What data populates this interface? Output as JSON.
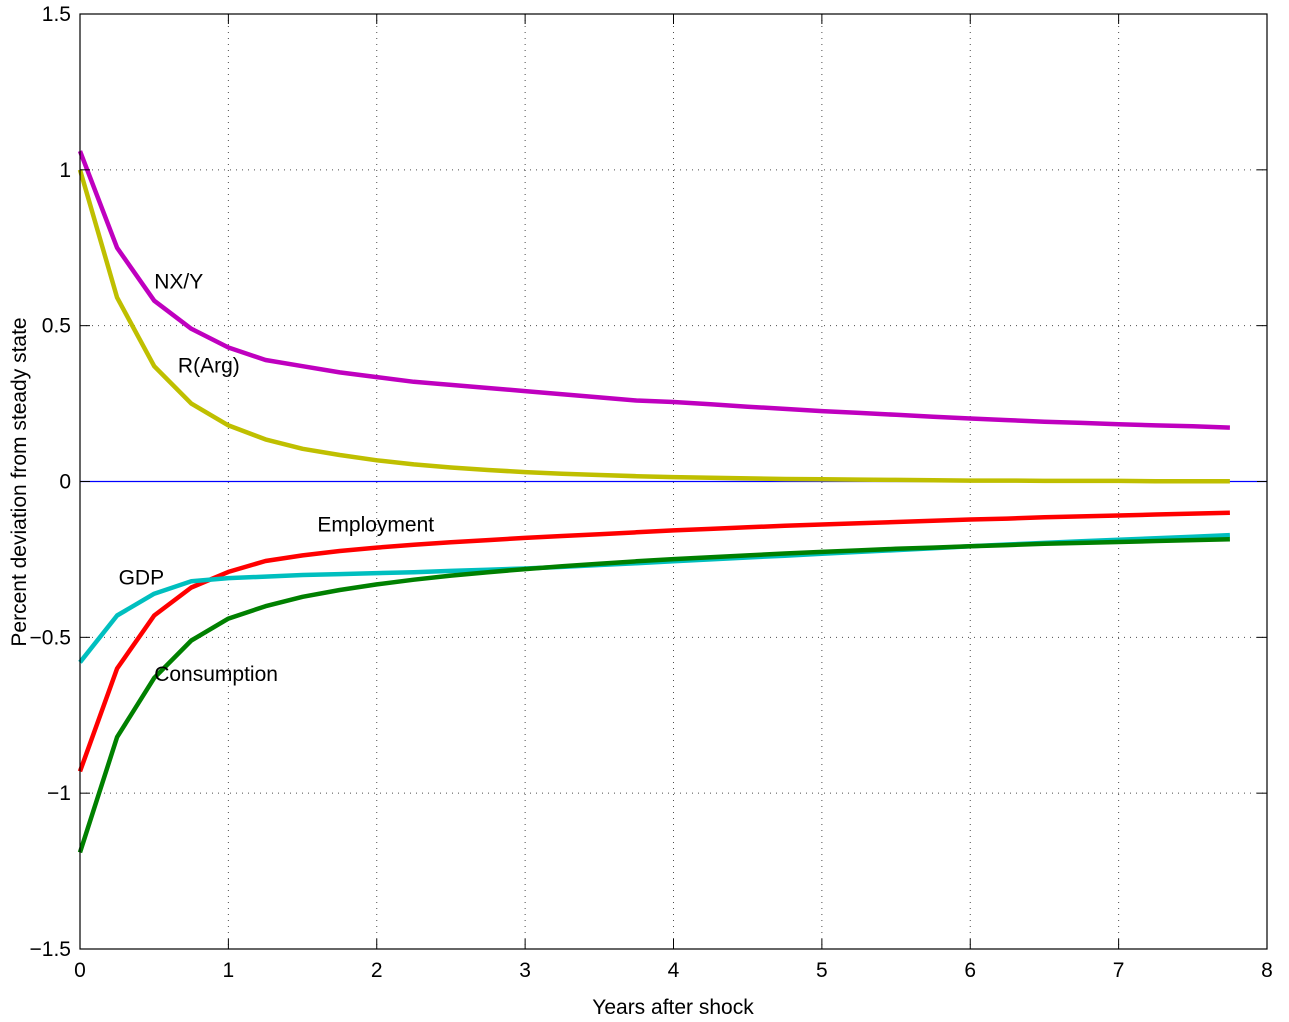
{
  "chart_data": {
    "type": "line",
    "title": "",
    "xlabel": "Years after shock",
    "ylabel": "Percent deviation from steady state",
    "xlim": [
      0,
      8
    ],
    "ylim": [
      -1.5,
      1.5
    ],
    "xticks": [
      0,
      1,
      2,
      3,
      4,
      5,
      6,
      7,
      8
    ],
    "xtick_labels": [
      "0",
      "1",
      "2",
      "3",
      "4",
      "5",
      "6",
      "7",
      "8"
    ],
    "yticks": [
      -1.5,
      -1,
      -0.5,
      0,
      0.5,
      1,
      1.5
    ],
    "ytick_labels": [
      "−1.5",
      "−1",
      "−0.5",
      "0",
      "0.5",
      "1",
      "1.5"
    ],
    "grid": true,
    "legend": "none",
    "x": [
      0,
      0.25,
      0.5,
      0.75,
      1,
      1.25,
      1.5,
      1.75,
      2,
      2.25,
      2.5,
      2.75,
      3,
      3.25,
      3.5,
      3.75,
      4,
      4.25,
      4.5,
      4.75,
      5,
      5.25,
      5.5,
      5.75,
      6,
      6.25,
      6.5,
      6.75,
      7,
      7.25,
      7.5,
      7.75
    ],
    "zero_line": {
      "y": 0,
      "color": "#0000ff"
    },
    "series": [
      {
        "name": "NX/Y",
        "color": "#bf00bf",
        "values": [
          1.06,
          0.75,
          0.58,
          0.49,
          0.43,
          0.39,
          0.37,
          0.35,
          0.335,
          0.32,
          0.31,
          0.3,
          0.29,
          0.28,
          0.27,
          0.26,
          0.255,
          0.248,
          0.24,
          0.233,
          0.226,
          0.22,
          0.214,
          0.208,
          0.202,
          0.197,
          0.192,
          0.188,
          0.184,
          0.18,
          0.177,
          0.173
        ]
      },
      {
        "name": "R(Arg)",
        "color": "#bfbf00",
        "values": [
          1.0,
          0.59,
          0.37,
          0.25,
          0.18,
          0.135,
          0.105,
          0.085,
          0.068,
          0.055,
          0.045,
          0.037,
          0.03,
          0.025,
          0.021,
          0.017,
          0.014,
          0.012,
          0.01,
          0.008,
          0.007,
          0.006,
          0.005,
          0.004,
          0.003,
          0.003,
          0.002,
          0.002,
          0.002,
          0.001,
          0.001,
          0.001
        ]
      },
      {
        "name": "Employment",
        "color": "#ff0000",
        "values": [
          -0.93,
          -0.6,
          -0.43,
          -0.34,
          -0.29,
          -0.255,
          -0.237,
          -0.223,
          -0.212,
          -0.203,
          -0.195,
          -0.188,
          -0.181,
          -0.175,
          -0.169,
          -0.163,
          -0.157,
          -0.152,
          -0.147,
          -0.142,
          -0.138,
          -0.134,
          -0.13,
          -0.126,
          -0.122,
          -0.119,
          -0.115,
          -0.112,
          -0.109,
          -0.106,
          -0.103,
          -0.1
        ]
      },
      {
        "name": "GDP",
        "color": "#00bfbf",
        "values": [
          -0.58,
          -0.43,
          -0.36,
          -0.32,
          -0.31,
          -0.305,
          -0.3,
          -0.297,
          -0.294,
          -0.291,
          -0.287,
          -0.283,
          -0.279,
          -0.274,
          -0.268,
          -0.262,
          -0.256,
          -0.25,
          -0.244,
          -0.238,
          -0.232,
          -0.226,
          -0.22,
          -0.214,
          -0.208,
          -0.202,
          -0.197,
          -0.192,
          -0.187,
          -0.182,
          -0.177,
          -0.172
        ]
      },
      {
        "name": "Consumption",
        "color": "#008000",
        "values": [
          -1.19,
          -0.82,
          -0.63,
          -0.51,
          -0.44,
          -0.4,
          -0.37,
          -0.348,
          -0.33,
          -0.315,
          -0.302,
          -0.291,
          -0.281,
          -0.272,
          -0.264,
          -0.256,
          -0.249,
          -0.243,
          -0.237,
          -0.231,
          -0.226,
          -0.221,
          -0.216,
          -0.212,
          -0.208,
          -0.204,
          -0.2,
          -0.197,
          -0.194,
          -0.191,
          -0.188,
          -0.185
        ]
      }
    ],
    "annotations": [
      {
        "text": "NX/Y",
        "x": 0.5,
        "y": 0.62,
        "series": "NX/Y"
      },
      {
        "text": "R(Arg)",
        "x": 0.66,
        "y": 0.35,
        "series": "R(Arg)"
      },
      {
        "text": "Employment",
        "x": 1.6,
        "y": -0.16,
        "series": "Employment"
      },
      {
        "text": "GDP",
        "x": 0.26,
        "y": -0.33,
        "series": "GDP"
      },
      {
        "text": "Consumption",
        "x": 0.5,
        "y": -0.64,
        "series": "Consumption"
      }
    ]
  }
}
